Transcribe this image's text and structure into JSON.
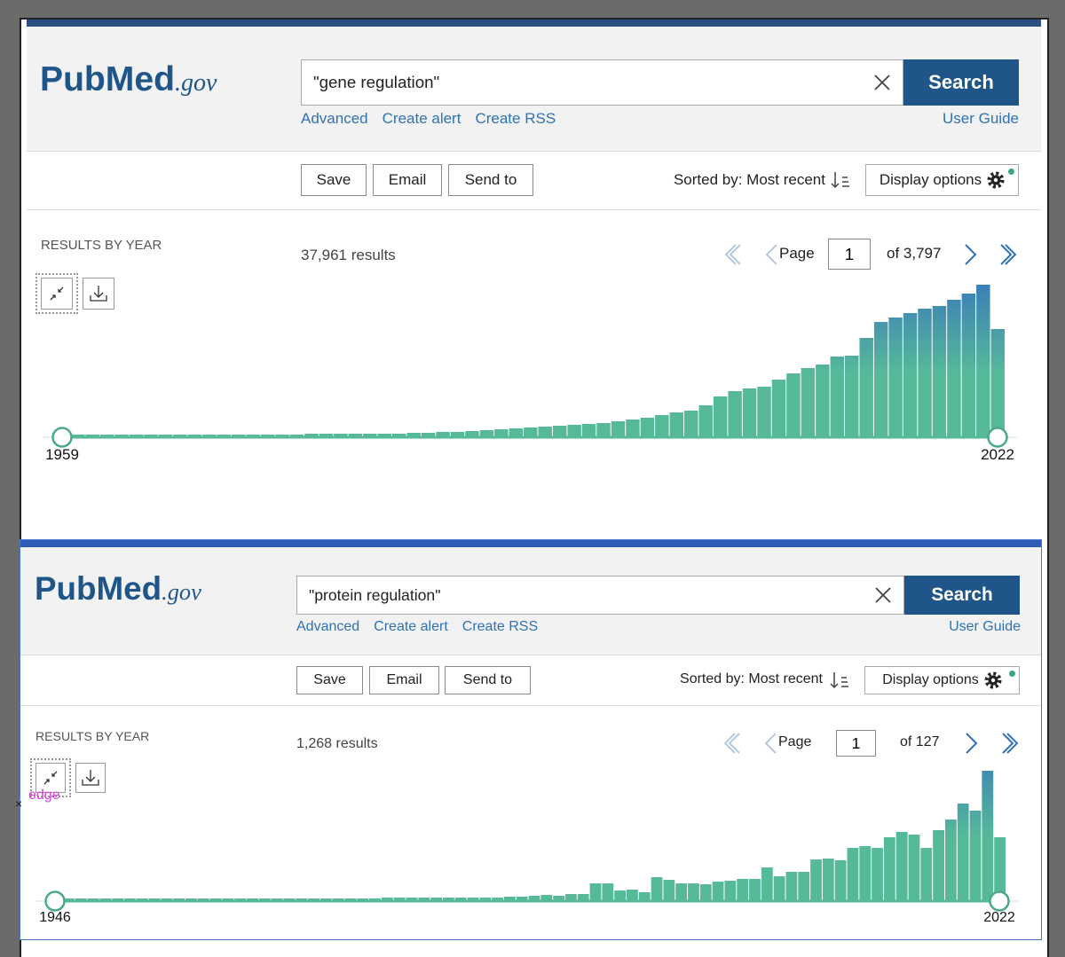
{
  "panels": [
    {
      "logo": "PubMed",
      "logo_domain": ".gov",
      "search": {
        "query": "\"gene regulation\"",
        "button": "Search"
      },
      "links": [
        "Advanced",
        "Create alert",
        "Create RSS"
      ],
      "user_guide": "User Guide",
      "actions": [
        "Save",
        "Email",
        "Send to"
      ],
      "sort": "Sorted by: Most recent",
      "display": "Display options",
      "results_by_year": "RESULTS BY YEAR",
      "results": "37,961 results",
      "pagination": {
        "label": "Page",
        "page": "1",
        "of": "of 3,797"
      },
      "chart_data": {
        "type": "bar",
        "range_labels": [
          "1959",
          "2022"
        ],
        "color": "#56ba99",
        "top_color": "#3b7db8",
        "values": [
          3,
          3,
          3,
          3,
          3,
          3,
          3,
          3,
          3,
          3,
          3,
          3,
          3,
          3,
          3,
          3,
          4,
          4,
          4,
          4,
          4,
          4,
          4,
          5,
          5,
          6,
          6,
          7,
          8,
          9,
          10,
          11,
          12,
          13,
          14,
          15,
          16,
          18,
          20,
          22,
          25,
          28,
          30,
          36,
          46,
          52,
          55,
          57,
          65,
          72,
          78,
          82,
          91,
          92,
          112,
          130,
          135,
          140,
          145,
          148,
          155,
          162,
          172,
          122
        ]
      }
    },
    {
      "logo": "PubMed",
      "logo_domain": ".gov",
      "search": {
        "query": "\"protein regulation\"",
        "button": "Search"
      },
      "links": [
        "Advanced",
        "Create alert",
        "Create RSS"
      ],
      "user_guide": "User Guide",
      "actions": [
        "Save",
        "Email",
        "Send to"
      ],
      "sort": "Sorted by: Most recent",
      "display": "Display options",
      "results_by_year": "RESULTS BY YEAR",
      "results": "1,268 results",
      "pagination": {
        "label": "Page",
        "page": "1",
        "of": "of 127"
      },
      "chart_data": {
        "type": "bar",
        "range_labels": [
          "1946",
          "2022"
        ],
        "color": "#56ba99",
        "top_color": "#3b7db8",
        "values": [
          3,
          3,
          3,
          3,
          3,
          3,
          3,
          3,
          3,
          3,
          3,
          3,
          3,
          3,
          3,
          3,
          3,
          3,
          3,
          3,
          3,
          3,
          3,
          3,
          3,
          3,
          4,
          4,
          4,
          4,
          4,
          4,
          4,
          4,
          4,
          4,
          5,
          5,
          6,
          7,
          6,
          8,
          8,
          20,
          20,
          12,
          13,
          10,
          27,
          24,
          20,
          20,
          19,
          22,
          23,
          25,
          25,
          38,
          28,
          33,
          33,
          47,
          48,
          46,
          60,
          62,
          60,
          72,
          78,
          75,
          60,
          80,
          92,
          110,
          102,
          147,
          72
        ]
      }
    }
  ],
  "annotation": {
    "mark": "×",
    "text": "edge"
  }
}
